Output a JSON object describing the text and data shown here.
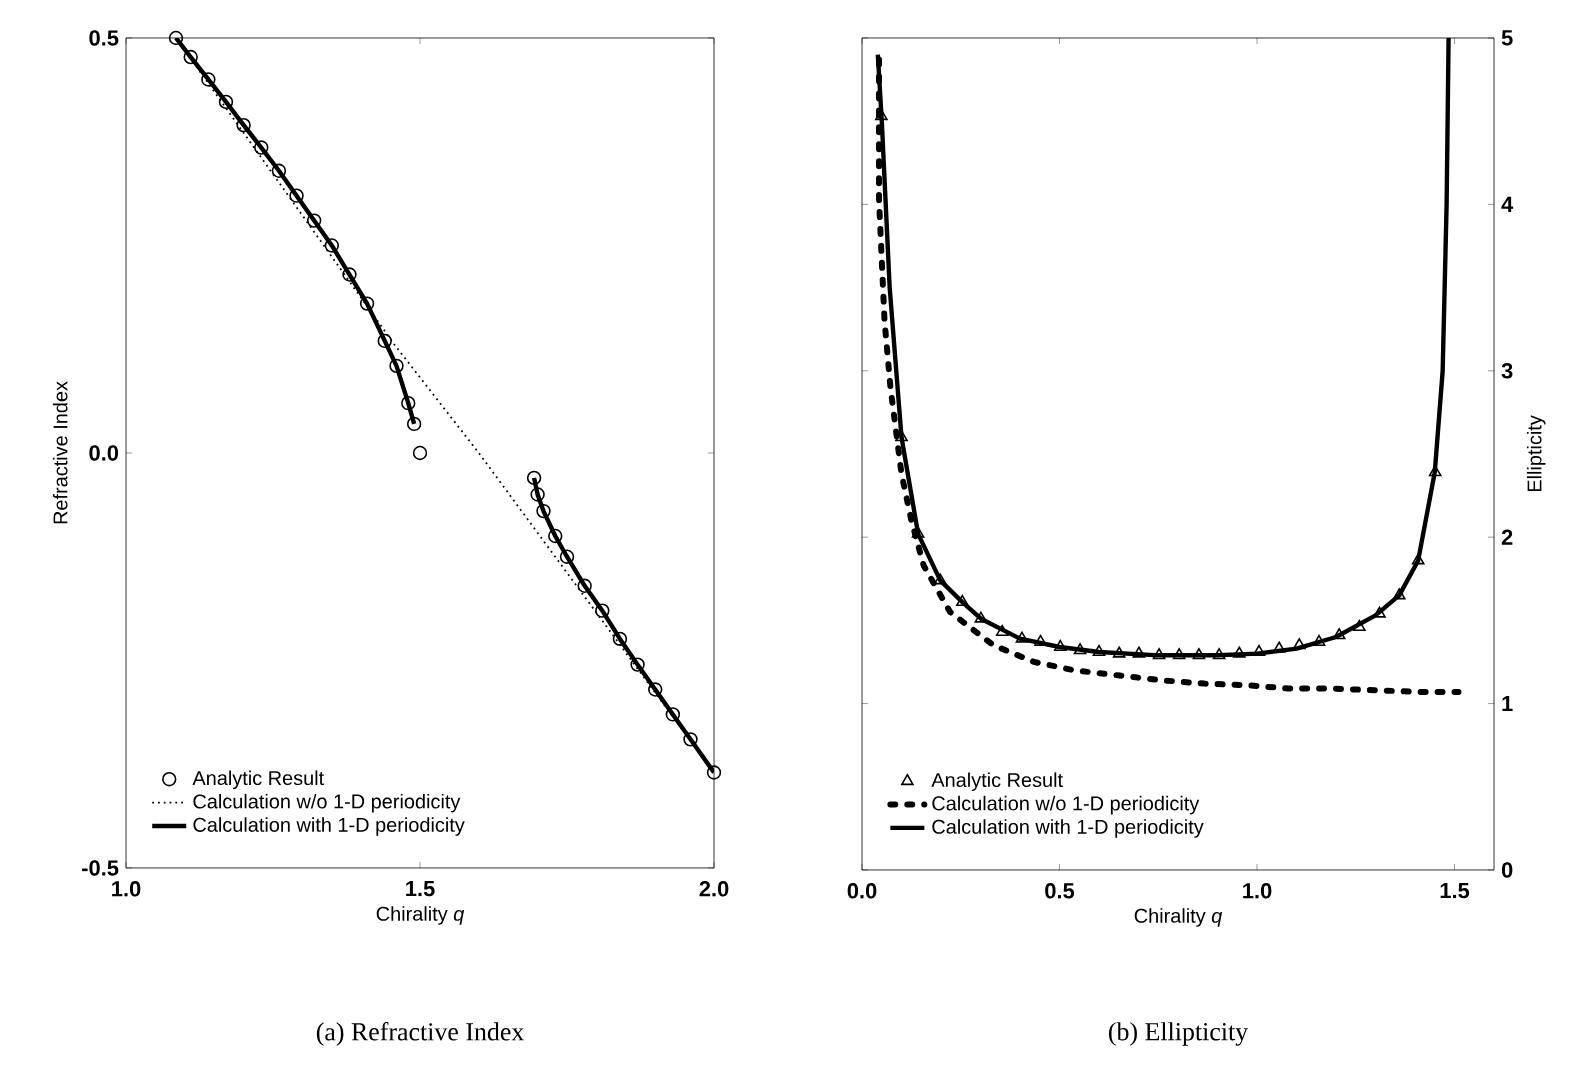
{
  "chart_data": [
    {
      "type": "line",
      "xlabel": "Chirality *q*",
      "ylabel": "Refractive Index",
      "xlim": [
        1,
        2
      ],
      "ylim": [
        -0.5,
        0.5
      ],
      "xticks": [
        {
          "value": 1,
          "label": "1.0"
        },
        {
          "value": 1.5,
          "label": "1.5"
        },
        {
          "value": 2,
          "label": "2.0"
        }
      ],
      "yticks": [
        {
          "value": -0.5,
          "label": "-0.5"
        },
        {
          "value": 0,
          "label": "0.0"
        },
        {
          "value": 0.5,
          "label": "0.5"
        }
      ],
      "legend": "bottom left",
      "annotations": [
        "(a) Refractive Index"
      ],
      "series": [
        {
          "name": "Analytic Result",
          "type": "scatter",
          "marker": "circle",
          "color": "#000000",
          "x": [
            1.085,
            1.11,
            1.14,
            1.17,
            1.2,
            1.23,
            1.26,
            1.29,
            1.32,
            1.35,
            1.38,
            1.41,
            1.44,
            1.46,
            1.48,
            1.49,
            1.5,
            1.694,
            1.7,
            1.71,
            1.73,
            1.75,
            1.78,
            1.81,
            1.84,
            1.87,
            1.9,
            1.93,
            1.96,
            2.0
          ],
          "values": [
            0.5,
            0.477,
            0.45,
            0.423,
            0.395,
            0.368,
            0.34,
            0.31,
            0.28,
            0.25,
            0.215,
            0.18,
            0.135,
            0.105,
            0.06,
            0.035,
            0.0,
            -0.03,
            -0.05,
            -0.07,
            -0.1,
            -0.125,
            -0.16,
            -0.19,
            -0.224,
            -0.255,
            -0.285,
            -0.315,
            -0.345,
            -0.385
          ]
        },
        {
          "name": "Calculation w/o 1-D periodicity",
          "line_style": "dotted",
          "color": "#000000",
          "x": [
            1.085,
            1.456,
            1.6,
            2.0
          ],
          "values": [
            0.5,
            0.131,
            0.0,
            -0.385
          ]
        },
        {
          "name": "Calculation with 1-D periodicity",
          "line_style": "solid",
          "color": "#000000",
          "x": [
            1.085,
            1.11,
            1.14,
            1.17,
            1.2,
            1.23,
            1.26,
            1.29,
            1.32,
            1.35,
            1.38,
            1.41,
            1.44,
            1.46,
            1.48,
            1.49,
            1.6,
            1.694,
            1.7,
            1.71,
            1.73,
            1.75,
            1.78,
            1.81,
            1.84,
            1.87,
            1.9,
            1.93,
            1.96,
            2.0
          ],
          "values": [
            0.5,
            0.477,
            0.45,
            0.423,
            0.395,
            0.368,
            0.34,
            0.31,
            0.28,
            0.25,
            0.215,
            0.18,
            0.135,
            0.105,
            0.06,
            0.035,
            null,
            -0.03,
            -0.05,
            -0.07,
            -0.1,
            -0.125,
            -0.16,
            -0.19,
            -0.224,
            -0.255,
            -0.285,
            -0.315,
            -0.345,
            -0.385
          ]
        }
      ]
    },
    {
      "type": "line",
      "xlabel": "Chirality *q*",
      "y2label": "Ellipticity",
      "xlim": [
        0,
        1.6
      ],
      "y2lim": [
        0,
        5
      ],
      "xticks": [
        {
          "value": 0,
          "label": "0.0"
        },
        {
          "value": 0.5,
          "label": "0.5"
        },
        {
          "value": 1,
          "label": "1.0"
        },
        {
          "value": 1.5,
          "label": "1.5"
        }
      ],
      "y2ticks": [
        0,
        1,
        2,
        3,
        4,
        5
      ],
      "legend": "bottom left",
      "annotations": [
        "(b) Ellipticity"
      ],
      "series": [
        {
          "name": "Analytic Result",
          "type": "scatter",
          "marker": "triangle",
          "axis": "y2",
          "color": "#000000",
          "x": [
            0.049,
            0.1,
            0.142,
            0.198,
            0.254,
            0.301,
            0.355,
            0.405,
            0.452,
            0.502,
            0.552,
            0.6,
            0.651,
            0.701,
            0.752,
            0.803,
            0.853,
            0.904,
            0.955,
            1.005,
            1.056,
            1.107,
            1.157,
            1.208,
            1.259,
            1.31,
            1.36,
            1.408,
            1.451
          ],
          "values": [
            4.53,
            2.6,
            2.02,
            1.74,
            1.61,
            1.51,
            1.43,
            1.39,
            1.37,
            1.34,
            1.32,
            1.31,
            1.3,
            1.3,
            1.29,
            1.29,
            1.29,
            1.29,
            1.3,
            1.31,
            1.33,
            1.35,
            1.37,
            1.41,
            1.46,
            1.54,
            1.65,
            1.86,
            2.39
          ]
        },
        {
          "name": "Calculation w/o 1-D periodicity",
          "line_style": "dashed",
          "axis": "y2",
          "color": "#000000",
          "x": [
            0.043,
            0.043,
            0.057,
            0.072,
            0.1,
            0.125,
            0.156,
            0.223,
            0.333,
            0.436,
            0.537,
            0.647,
            0.757,
            0.867,
            0.977,
            1.08,
            1.19,
            1.3,
            1.41,
            1.51
          ],
          "values": [
            4.87,
            4.03,
            3.3,
            2.9,
            2.38,
            2.1,
            1.83,
            1.55,
            1.35,
            1.25,
            1.2,
            1.17,
            1.14,
            1.12,
            1.11,
            1.09,
            1.09,
            1.08,
            1.07,
            1.07
          ]
        },
        {
          "name": "Calculation with 1-D periodicity",
          "line_style": "solid",
          "axis": "y2",
          "color": "#000000",
          "x": [
            0.04,
            0.05,
            0.07,
            0.1,
            0.142,
            0.198,
            0.254,
            0.301,
            0.4,
            0.5,
            0.6,
            0.75,
            0.9,
            1.0,
            1.1,
            1.2,
            1.3,
            1.36,
            1.408,
            1.45,
            1.47,
            1.48,
            1.485
          ],
          "values": [
            4.9,
            4.5,
            3.5,
            2.6,
            2.02,
            1.74,
            1.61,
            1.51,
            1.39,
            1.34,
            1.31,
            1.29,
            1.29,
            1.3,
            1.33,
            1.4,
            1.53,
            1.65,
            1.86,
            2.39,
            3.0,
            4.0,
            5.0
          ]
        }
      ]
    }
  ]
}
